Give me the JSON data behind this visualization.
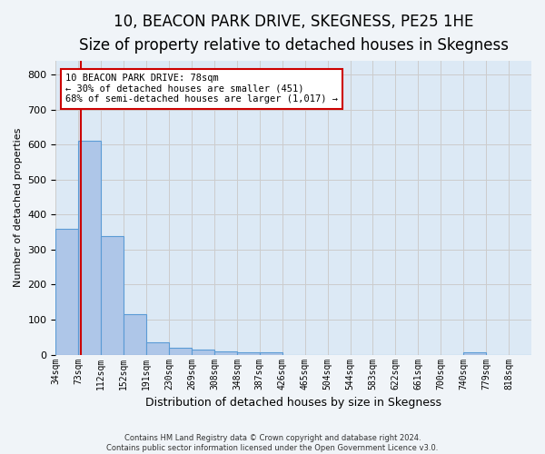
{
  "title": "10, BEACON PARK DRIVE, SKEGNESS, PE25 1HE",
  "subtitle": "Size of property relative to detached houses in Skegness",
  "xlabel": "Distribution of detached houses by size in Skegness",
  "ylabel": "Number of detached properties",
  "footer_line1": "Contains HM Land Registry data © Crown copyright and database right 2024.",
  "footer_line2": "Contains public sector information licensed under the Open Government Licence v3.0.",
  "bin_labels": [
    "34sqm",
    "73sqm",
    "112sqm",
    "152sqm",
    "191sqm",
    "230sqm",
    "269sqm",
    "308sqm",
    "348sqm",
    "387sqm",
    "426sqm",
    "465sqm",
    "504sqm",
    "544sqm",
    "583sqm",
    "622sqm",
    "661sqm",
    "700sqm",
    "740sqm",
    "779sqm",
    "818sqm"
  ],
  "bar_values": [
    358,
    611,
    338,
    115,
    36,
    20,
    15,
    10,
    8,
    8,
    0,
    0,
    0,
    0,
    0,
    0,
    0,
    0,
    7,
    0,
    0
  ],
  "bar_color": "#aec6e8",
  "bar_edge_color": "#5b9bd5",
  "annotation_line1": "10 BEACON PARK DRIVE: 78sqm",
  "annotation_line2": "← 30% of detached houses are smaller (451)",
  "annotation_line3": "68% of semi-detached houses are larger (1,017) →",
  "annotation_box_color": "#ffffff",
  "annotation_box_edge": "#cc0000",
  "vline_color": "#cc0000",
  "vline_x": 1.12,
  "ylim": [
    0,
    840
  ],
  "yticks": [
    0,
    100,
    200,
    300,
    400,
    500,
    600,
    700,
    800
  ],
  "grid_color": "#cccccc",
  "plot_bg_color": "#dce9f5",
  "fig_bg_color": "#f0f4f8",
  "title_fontsize": 12,
  "subtitle_fontsize": 10,
  "ylabel_fontsize": 8,
  "xlabel_fontsize": 9
}
